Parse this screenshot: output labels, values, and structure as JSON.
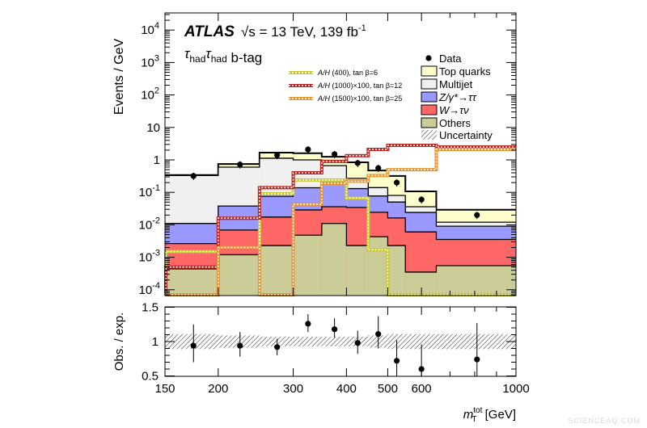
{
  "header": {
    "experiment": "ATLAS",
    "energy_text": "√s = 13 TeV, 139 fb",
    "energy_exp": "-1",
    "channel_tau1": "τ",
    "channel_sub1": "had",
    "channel_tau2": "τ",
    "channel_sub2": "had",
    "channel_tag": " b-tag"
  },
  "watermark": "SCIENCEAQ.COM",
  "chart_data": [
    {
      "type": "bar",
      "stacked": true,
      "log_x": true,
      "log_y": true,
      "ylabel": "Events / GeV",
      "ylim": [
        6.6e-05,
        34000
      ],
      "xlim": [
        150,
        1000
      ],
      "bin_edges": [
        150,
        200,
        250,
        300,
        350,
        400,
        450,
        500,
        550,
        650,
        1000
      ],
      "y_tick_labels": [
        {
          "m": "10",
          "e": "4",
          "v": 10000
        },
        {
          "m": "10",
          "e": "3",
          "v": 1000
        },
        {
          "m": "10",
          "e": "2",
          "v": 100
        },
        {
          "m": "10",
          "e": "",
          "v": 10
        },
        {
          "m": "1",
          "e": "",
          "v": 1
        },
        {
          "m": "10",
          "e": "-1",
          "v": 0.1
        },
        {
          "m": "10",
          "e": "-2",
          "v": 0.01
        },
        {
          "m": "10",
          "e": "-3",
          "v": 0.001
        },
        {
          "m": "10",
          "e": "-4",
          "v": 0.0001
        }
      ],
      "series": [
        {
          "name": "Others",
          "color": "#cccc99",
          "values": [
            0.00044,
            0.0012,
            0.0023,
            0.0048,
            0.011,
            0.0023,
            0.0043,
            0.0023,
            0.00035,
            0.00055
          ]
        },
        {
          "name": "W→τν",
          "name_italic": "W",
          "name_rest": "→τν",
          "color": "#ff6666",
          "values": [
            0.0022,
            0.0057,
            0.015,
            0.024,
            0.025,
            0.032,
            0.02,
            0.014,
            0.0057,
            0.003
          ]
        },
        {
          "name": "Z/γ*→ττ",
          "name_italic": "Z/γ*",
          "name_rest": "→ττ",
          "color": "#9999ff",
          "values": [
            0.0084,
            0.031,
            0.058,
            0.11,
            0.14,
            0.096,
            0.053,
            0.034,
            0.018,
            0.0055
          ]
        },
        {
          "name": "Multijet",
          "color": "#f0f0f0",
          "values": [
            0.32,
            0.56,
            1.05,
            0.86,
            0.49,
            0.14,
            0.063,
            0.03,
            0.012,
            0.003
          ]
        },
        {
          "name": "Top quarks",
          "color": "#ffffcc",
          "values": [
            0.01,
            0.15,
            0.55,
            0.6,
            0.58,
            0.57,
            0.33,
            0.24,
            0.071,
            0.017
          ]
        }
      ],
      "data": {
        "name": "Data",
        "x": [
          175,
          225,
          275,
          325,
          375,
          425,
          475,
          525,
          600,
          810
        ],
        "values": [
          0.32,
          0.72,
          1.4,
          2.1,
          1.5,
          0.8,
          0.56,
          0.2,
          0.06,
          0.02
        ]
      },
      "signals": [
        {
          "name_italic": "A/H",
          "name_rest": " (400), tan β=6",
          "color": "#c8c832",
          "values": [
            0.0015,
            0.002,
            0.09,
            0.24,
            0.24,
            0.067,
            0.0017,
            7e-05,
            7e-05,
            7e-05
          ]
        },
        {
          "name_italic": "A/H",
          "name_rest": " (1000)×100, tan β=12",
          "color": "#c0201e",
          "values": [
            0.0005,
            0.016,
            0.14,
            0.4,
            0.9,
            1.35,
            2.1,
            2.8,
            2.8,
            2.5
          ]
        },
        {
          "name_italic": "A/H",
          "name_rest": " (1500)×100, tan β=25",
          "color": "#e8922e",
          "values": [
            7e-05,
            0.002,
            7e-05,
            0.043,
            0.19,
            0.22,
            0.33,
            0.5,
            0.5,
            2.1
          ]
        }
      ],
      "uncertainty_label": "Uncertainty"
    },
    {
      "type": "scatter",
      "ylabel": "Obs. / exp.",
      "ylim": [
        0.5,
        1.5
      ],
      "y_tick_labels": [
        "1.5",
        "1",
        "0.5"
      ],
      "x_tick_labels": [
        "150",
        "200",
        "300",
        "400",
        "500",
        "600",
        "1000"
      ],
      "xlabel_main": "m",
      "xlabel_sup": "tot",
      "xlabel_sub": "T",
      "xlabel_unit": " [GeV]",
      "x": [
        175,
        225,
        275,
        325,
        375,
        425,
        475,
        525,
        600,
        810
      ],
      "ratio": [
        0.94,
        0.94,
        0.92,
        1.26,
        1.18,
        0.98,
        1.11,
        0.72,
        0.6,
        0.74
      ],
      "err_up": [
        1.25,
        1.14,
        1.04,
        1.4,
        1.34,
        1.16,
        1.37,
        1.02,
        0.96,
        1.27
      ],
      "err_down": [
        0.7,
        0.78,
        0.8,
        1.14,
        1.06,
        0.82,
        0.9,
        0.5,
        0.5,
        0.5
      ],
      "uncertainty_band": [
        0.11,
        0.09,
        0.07,
        0.07,
        0.07,
        0.07,
        0.09,
        0.11,
        0.11,
        0.11
      ]
    }
  ]
}
